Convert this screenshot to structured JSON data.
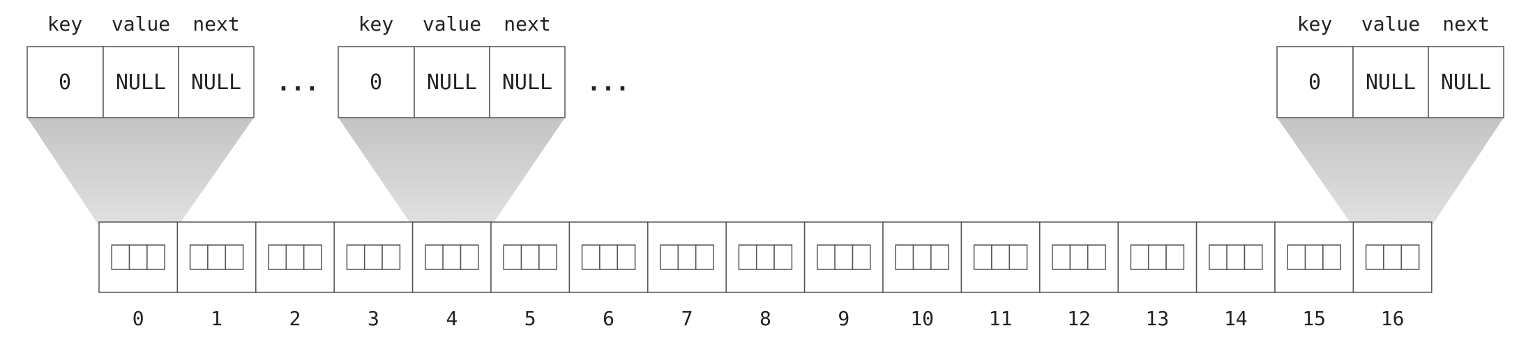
{
  "nodes": [
    {
      "headers": {
        "key": "key",
        "value": "value",
        "next": "next"
      },
      "cells": {
        "key": "0",
        "value": "NULL",
        "next": "NULL"
      },
      "bucket_index": 0
    },
    {
      "headers": {
        "key": "key",
        "value": "value",
        "next": "next"
      },
      "cells": {
        "key": "0",
        "value": "NULL",
        "next": "NULL"
      },
      "bucket_index": 4
    },
    {
      "headers": {
        "key": "key",
        "value": "value",
        "next": "next"
      },
      "cells": {
        "key": "0",
        "value": "NULL",
        "next": "NULL"
      },
      "bucket_index": 16
    }
  ],
  "ellipses": [
    "...",
    "..."
  ],
  "array": {
    "indices": [
      "0",
      "1",
      "2",
      "3",
      "4",
      "5",
      "6",
      "7",
      "8",
      "9",
      "10",
      "11",
      "12",
      "13",
      "14",
      "15",
      "16"
    ]
  },
  "colors": {
    "funnel_top": "#c4c4c4",
    "funnel_bottom": "#e6e6e6",
    "stroke": "#555555"
  }
}
